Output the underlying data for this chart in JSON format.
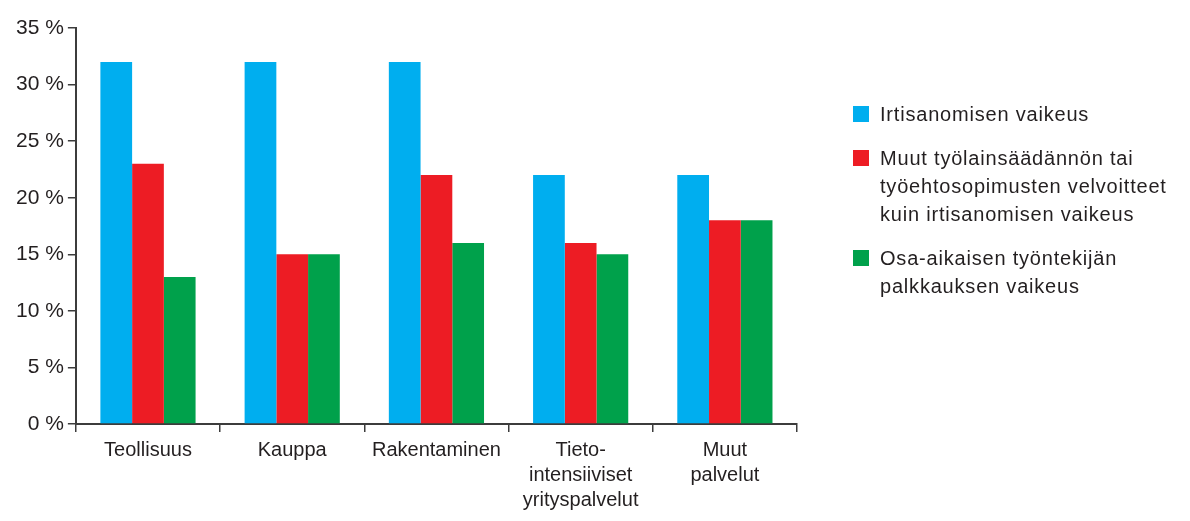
{
  "chart_data": {
    "type": "bar",
    "categories": [
      "Teollisuus",
      "Kauppa",
      "Rakentaminen",
      "Tieto-intensiiviset yrityspalvelut",
      "Muut palvelut"
    ],
    "series": [
      {
        "name": "Irtisanomisen vaikeus",
        "color": "#00aeef",
        "values": [
          32,
          32,
          32,
          22,
          22
        ]
      },
      {
        "name": "Muut työlainsäädännön tai työehtosopimusten velvoitteet kuin irtisanomisen vaikeus",
        "color": "#ed1c24",
        "values": [
          23,
          15,
          22,
          16,
          18
        ]
      },
      {
        "name": "Osa-aikaisen työntekijän palkkauksen vaikeus",
        "color": "#00a14b",
        "values": [
          13,
          15,
          16,
          15,
          18
        ]
      }
    ],
    "ylim": [
      0,
      35
    ],
    "yticks": [
      {
        "value": 0,
        "label": "0 %"
      },
      {
        "value": 5,
        "label": "5 %"
      },
      {
        "value": 10,
        "label": "10 %"
      },
      {
        "value": 15,
        "label": "15 %"
      },
      {
        "value": 20,
        "label": "20 %"
      },
      {
        "value": 25,
        "label": "25 %"
      },
      {
        "value": 30,
        "label": "30 %"
      },
      {
        "value": 35,
        "label": "35 %"
      }
    ],
    "grid": false,
    "legend": "right"
  }
}
